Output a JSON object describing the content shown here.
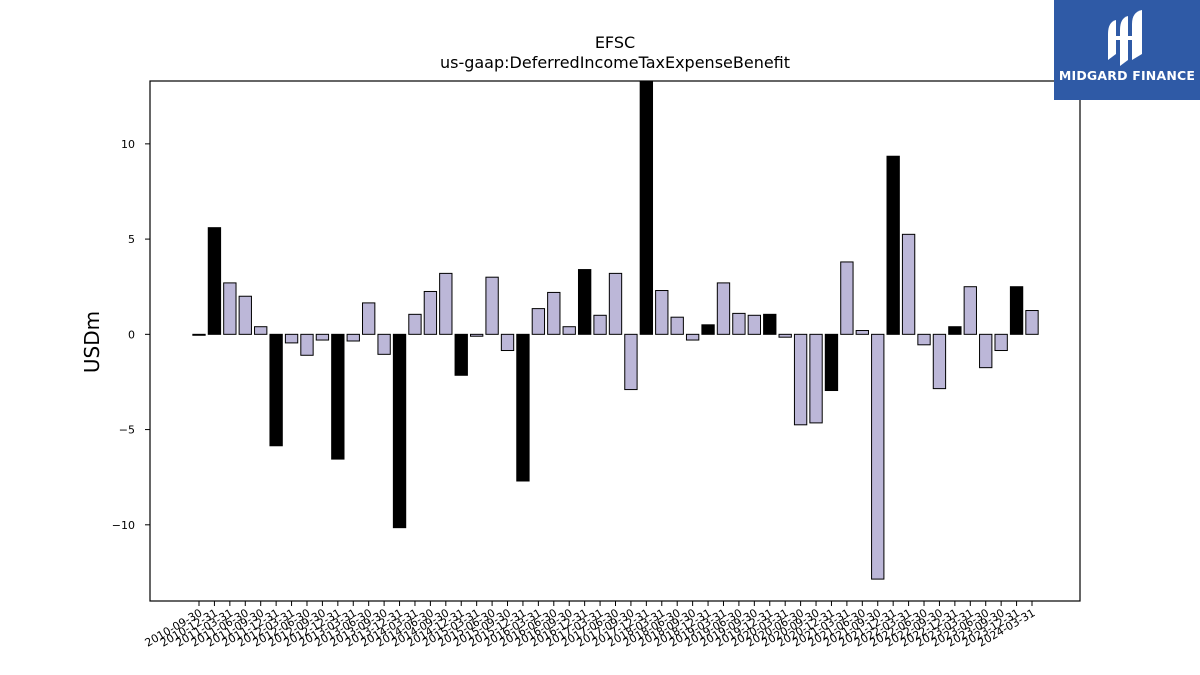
{
  "brand": {
    "name": "MIDGARD FINANCE",
    "logo_icon": "midgard-finance-logo-icon",
    "background_color": "#2f5aa6"
  },
  "colors": {
    "bar_default": "#bcb7d8",
    "bar_highlight": "#000000",
    "bar_edge": "#000000"
  },
  "chart_data": {
    "type": "bar",
    "title": "EFSC",
    "subtitle": "us-gaap:DeferredIncomeTaxExpenseBenefit",
    "xlabel": "",
    "ylabel": "USDm",
    "ylim": [
      -14,
      13.3
    ],
    "yticks": [
      -10,
      -5,
      0,
      5,
      10
    ],
    "ytick_labels": [
      "−10",
      "−5",
      "0",
      "5",
      "10"
    ],
    "grid": false,
    "categories": [
      "2010-09-30",
      "2010-12-31",
      "2011-03-31",
      "2011-06-30",
      "2011-09-30",
      "2011-12-31",
      "2012-03-31",
      "2012-06-30",
      "2012-09-30",
      "2012-12-31",
      "2013-03-31",
      "2013-06-30",
      "2013-09-30",
      "2013-12-31",
      "2014-03-31",
      "2014-06-30",
      "2014-09-30",
      "2014-12-31",
      "2015-03-31",
      "2015-06-30",
      "2015-09-30",
      "2015-12-31",
      "2016-03-31",
      "2016-06-30",
      "2016-09-30",
      "2016-12-31",
      "2017-03-31",
      "2017-06-30",
      "2017-09-30",
      "2017-12-31",
      "2018-03-31",
      "2018-06-30",
      "2018-09-30",
      "2018-12-31",
      "2019-03-31",
      "2019-06-30",
      "2019-09-30",
      "2019-12-31",
      "2020-03-31",
      "2020-06-30",
      "2020-09-30",
      "2020-12-31",
      "2021-03-31",
      "2021-06-30",
      "2021-09-30",
      "2021-12-31",
      "2022-03-31",
      "2022-06-30",
      "2022-09-30",
      "2022-12-31",
      "2023-03-31",
      "2023-06-30",
      "2023-09-30",
      "2023-12-31",
      "2024-03-31"
    ],
    "values": [
      -0.05,
      5.6,
      2.7,
      2.0,
      0.4,
      -5.85,
      -0.45,
      -1.1,
      -0.3,
      -6.55,
      -0.35,
      1.65,
      -1.05,
      -10.15,
      1.05,
      2.25,
      3.2,
      -2.15,
      -0.1,
      3.0,
      -0.85,
      -7.7,
      1.35,
      2.2,
      0.4,
      3.4,
      1.0,
      3.2,
      -2.9,
      13.3,
      2.3,
      0.9,
      -0.3,
      0.5,
      2.7,
      1.1,
      1.0,
      1.05,
      -0.15,
      -4.75,
      -4.65,
      -2.95,
      3.8,
      0.2,
      -12.85,
      9.35,
      5.25,
      -0.55,
      -2.85,
      0.4,
      2.5,
      -1.75,
      -0.85,
      2.5,
      1.25
    ],
    "highlight": [
      false,
      true,
      false,
      false,
      false,
      true,
      false,
      false,
      false,
      true,
      false,
      false,
      false,
      true,
      false,
      false,
      false,
      true,
      false,
      false,
      false,
      true,
      false,
      false,
      false,
      true,
      false,
      false,
      false,
      true,
      false,
      false,
      false,
      true,
      false,
      false,
      false,
      true,
      false,
      false,
      false,
      true,
      false,
      false,
      false,
      true,
      false,
      false,
      false,
      true,
      false,
      false,
      false,
      true,
      false
    ]
  }
}
